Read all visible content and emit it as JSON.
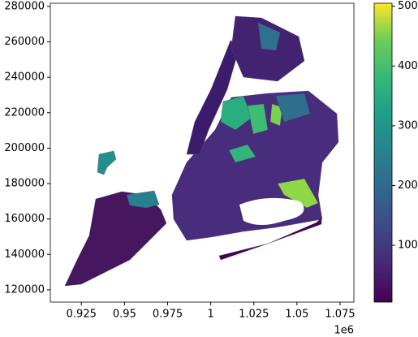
{
  "chart_data": {
    "type": "map",
    "xlim": [
      0.907,
      1.083
    ],
    "xticks": [
      0.925,
      0.95,
      0.975,
      1.0,
      1.025,
      1.05,
      1.075
    ],
    "x_offset_label": "1e6",
    "ylim": [
      113100,
      281800
    ],
    "yticks": [
      120000,
      140000,
      160000,
      180000,
      200000,
      220000,
      240000,
      260000,
      280000
    ],
    "colorbar": {
      "lim": [
        5,
        505
      ],
      "ticks": [
        100,
        200,
        300,
        400,
        500
      ]
    }
  }
}
